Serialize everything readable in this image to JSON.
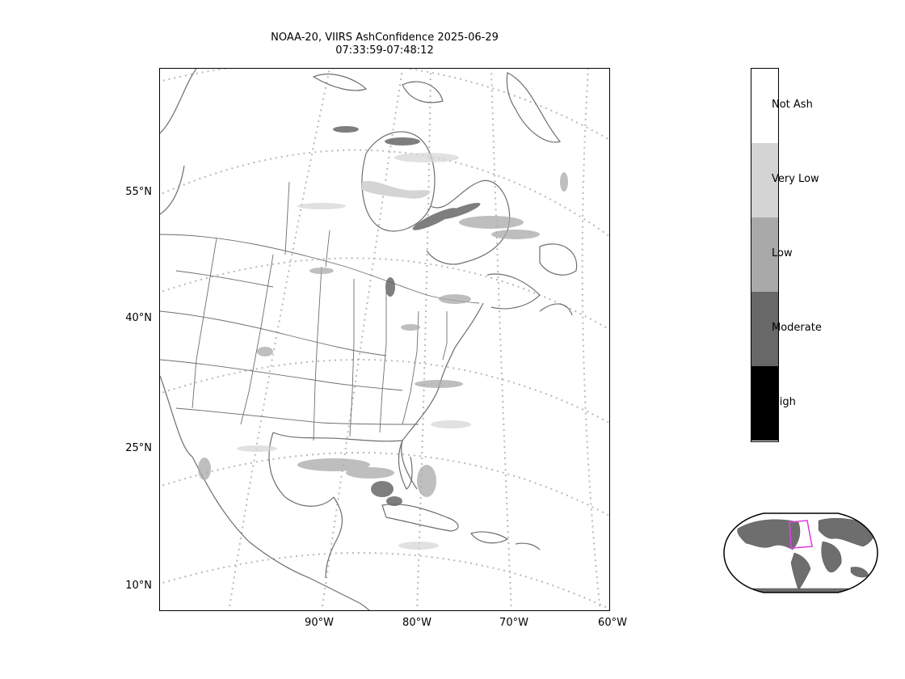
{
  "title": {
    "line1": "NOAA-20, VIIRS AshConfidence 2025-06-29",
    "line2": "07:33:59-07:48:12"
  },
  "map": {
    "lat_ticks": [
      "55°N",
      "40°N",
      "25°N",
      "10°N"
    ],
    "lon_ticks": [
      "90°W",
      "80°W",
      "70°W",
      "60°W"
    ]
  },
  "colorbar": {
    "categories": [
      "Not Ash",
      "Very Low",
      "Low",
      "Moderate",
      "High"
    ],
    "colors": [
      "#ffffff",
      "#d4d4d4",
      "#a9a9a9",
      "#686868",
      "#000000"
    ]
  },
  "inset": {
    "land_color": "#6e6e6e",
    "highlight_color": "#e040e0"
  }
}
